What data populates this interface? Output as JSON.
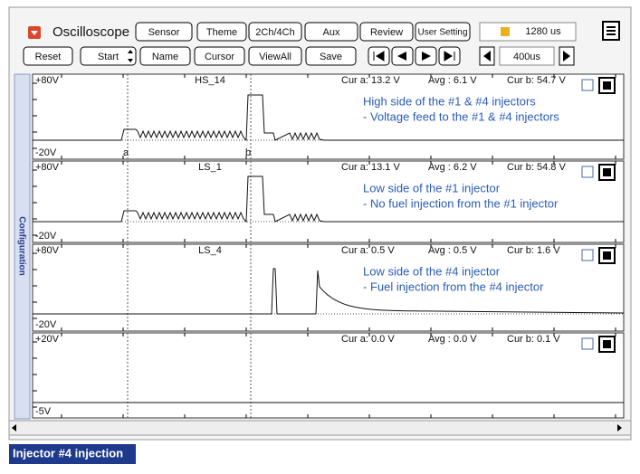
{
  "toolbar": {
    "title": "Oscilloscope",
    "buttons": [
      "Sensor",
      "Theme",
      "2Ch/4Ch",
      "Aux",
      "Review",
      "User Setting"
    ],
    "time_display": "1280 us"
  },
  "controls": {
    "buttons": [
      "Reset",
      "Start",
      "Name",
      "Cursor",
      "ViewAll",
      "Save"
    ],
    "time_div": "400us"
  },
  "side_tab": "Configuration",
  "cursors": [
    "a",
    "b"
  ],
  "channels": [
    {
      "name": "HS_14",
      "top": "+80V",
      "bottom": "-20V",
      "cur_a": "Cur a: 13.2 V",
      "avg": "Avg  : 6.1 V",
      "cur_b": "Cur b: 54.7 V",
      "notes": [
        "High side of the #1 & #4 injectors",
        "- Voltage feed to the #1 & #4 injectors"
      ]
    },
    {
      "name": "LS_1",
      "top": "+80V",
      "bottom": "-20V",
      "cur_a": "Cur a: 13.1 V",
      "avg": "Avg  : 6.2 V",
      "cur_b": "Cur b: 54.8 V",
      "notes": [
        "Low side of the #1 injector",
        "- No fuel injection from the #1 injector"
      ]
    },
    {
      "name": "LS_4",
      "top": "+80V",
      "bottom": "-20V",
      "cur_a": "Cur a: 0.5 V",
      "avg": "Avg  : 0.5 V",
      "cur_b": "Cur b: 1.6 V",
      "notes": [
        "Low side of the #4 injector",
        "- Fuel injection from the #4 injector"
      ]
    },
    {
      "name": "",
      "top": "+20V",
      "bottom": "-5V",
      "cur_a": "Cur a: 0.0 V",
      "avg": "Avg  : 0.0 V",
      "cur_b": "Cur b: 0.1 V",
      "notes": []
    }
  ],
  "caption": "Injector #4 injection"
}
